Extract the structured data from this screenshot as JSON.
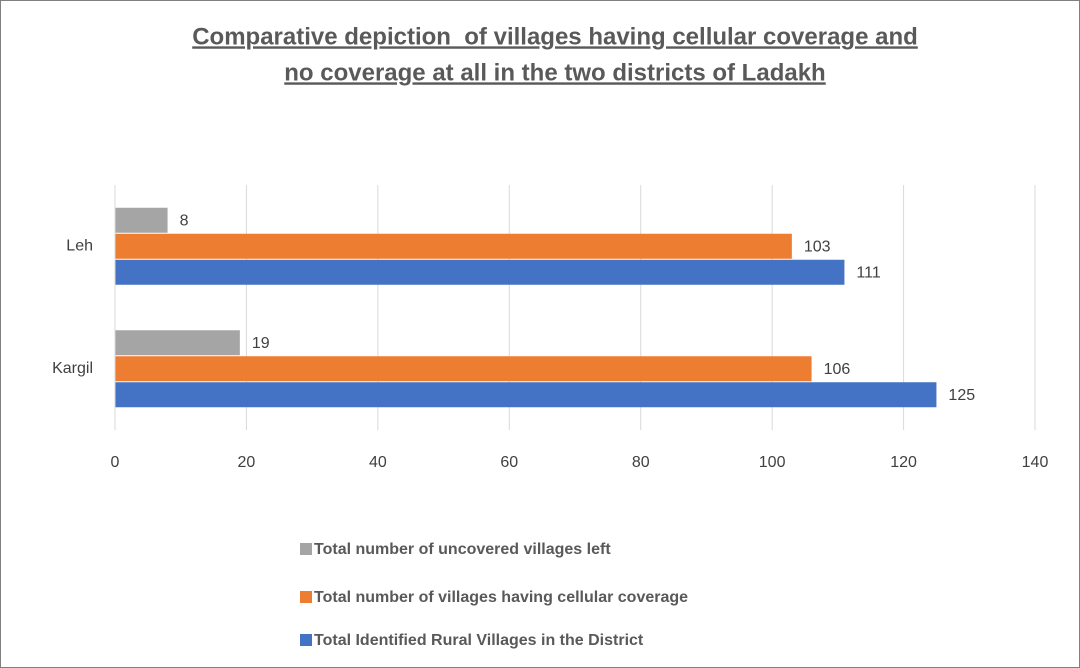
{
  "chart_data": {
    "type": "hbar",
    "title": [
      "Comparative depiction  of villages having cellular coverage and",
      "no coverage at all in the two districts of Ladakh"
    ],
    "categories": [
      "Kargil",
      "Leh"
    ],
    "series": [
      {
        "name": "Total Identified Rural Villages in the District",
        "color": "#4472c4",
        "values": [
          125,
          111
        ]
      },
      {
        "name": "Total number of villages having cellular coverage",
        "color": "#ed7d31",
        "values": [
          106,
          103
        ]
      },
      {
        "name": "Total number of uncovered villages left",
        "color": "#a5a5a5",
        "values": [
          19,
          8
        ]
      }
    ],
    "xlim": [
      0,
      140
    ],
    "xticks": [
      0,
      20,
      40,
      60,
      80,
      100,
      120,
      140
    ],
    "grid": true,
    "legend": "bottom"
  }
}
